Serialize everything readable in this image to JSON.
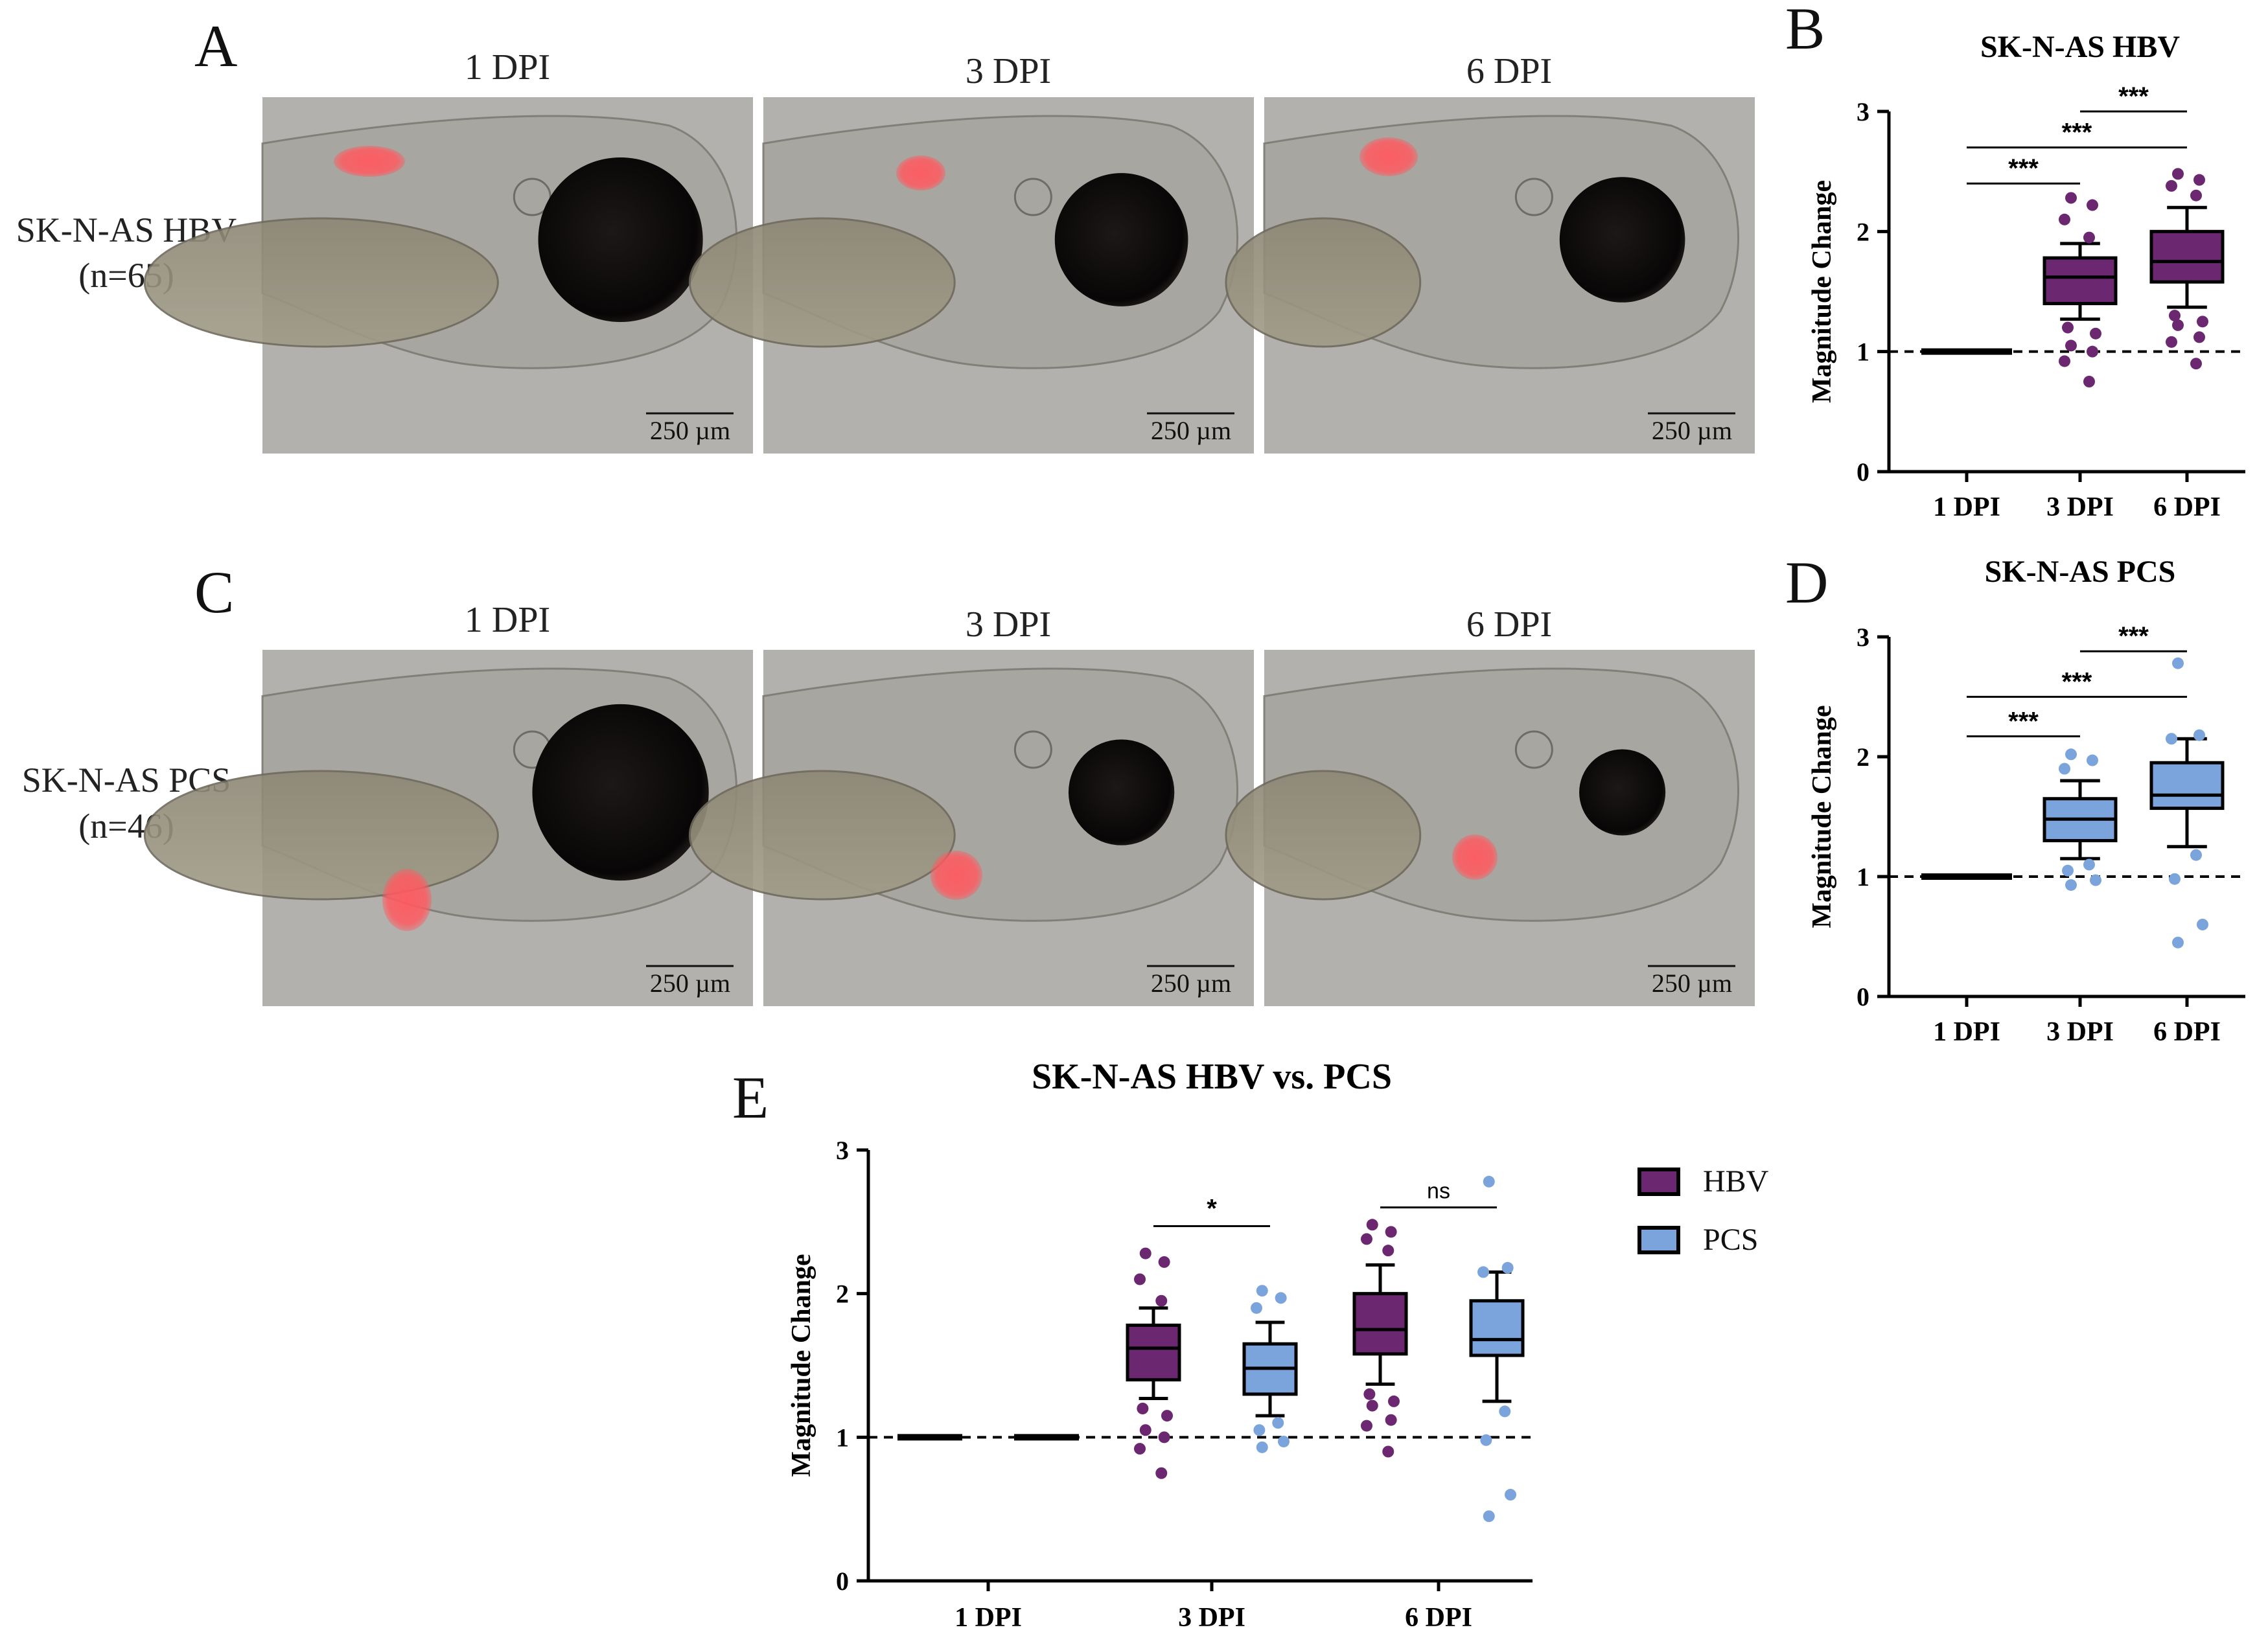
{
  "figure": {
    "panel_letters": {
      "A": "A",
      "B": "B",
      "C": "C",
      "D": "D",
      "E": "E"
    },
    "microscopy": {
      "col_labels": [
        "1 DPI",
        "3 DPI",
        "6 DPI"
      ],
      "row_labels": [
        {
          "line1": "SK-N-AS HBV",
          "line2": "(n=65)"
        },
        {
          "line1": "SK-N-AS PCS",
          "line2": "(n=46)"
        }
      ],
      "scale_bar_label": "250 µm",
      "colors": {
        "background": "#b3b1ad",
        "tumor": "#ff5a60",
        "eye": "#0d0b0b"
      }
    }
  },
  "chart_data": [
    {
      "panel": "B",
      "type": "box",
      "title": "SK-N-AS HBV",
      "ylabel": "Magnitude Change",
      "categories": [
        "1 DPI",
        "3 DPI",
        "6 DPI"
      ],
      "ylim": [
        0,
        3
      ],
      "yticks": [
        "0",
        "1",
        "2",
        "3"
      ],
      "reference_line": 1,
      "color": "#6b2770",
      "boxes": [
        {
          "min": 1,
          "q1": 1,
          "median": 1,
          "q3": 1,
          "max": 1
        },
        {
          "min": 1.27,
          "q1": 1.4,
          "median": 1.62,
          "q3": 1.78,
          "max": 1.9
        },
        {
          "min": 1.37,
          "q1": 1.58,
          "median": 1.75,
          "q3": 2.0,
          "max": 2.2
        }
      ],
      "outliers": [
        [],
        [
          2.28,
          2.22,
          2.1,
          1.95,
          1.2,
          1.15,
          1.05,
          1.0,
          0.92,
          0.75
        ],
        [
          2.48,
          2.43,
          2.38,
          2.3,
          1.3,
          1.25,
          1.22,
          1.12,
          1.08,
          0.9
        ]
      ],
      "significance": [
        {
          "from": 0,
          "to": 1,
          "y": 2.4,
          "label": "***"
        },
        {
          "from": 0,
          "to": 2,
          "y": 2.7,
          "label": "***"
        },
        {
          "from": 1,
          "to": 2,
          "y": 3.0,
          "label": "***"
        }
      ]
    },
    {
      "panel": "D",
      "type": "box",
      "title": "SK-N-AS PCS",
      "ylabel": "Magnitude Change",
      "categories": [
        "1 DPI",
        "3 DPI",
        "6 DPI"
      ],
      "ylim": [
        0,
        3
      ],
      "yticks": [
        "0",
        "1",
        "2",
        "3"
      ],
      "reference_line": 1,
      "color": "#7ba4dc",
      "boxes": [
        {
          "min": 1,
          "q1": 1,
          "median": 1,
          "q3": 1,
          "max": 1
        },
        {
          "min": 1.15,
          "q1": 1.3,
          "median": 1.48,
          "q3": 1.65,
          "max": 1.8
        },
        {
          "min": 1.25,
          "q1": 1.57,
          "median": 1.68,
          "q3": 1.95,
          "max": 2.15
        }
      ],
      "outliers": [
        [],
        [
          2.02,
          1.97,
          1.9,
          1.1,
          1.05,
          0.97,
          0.93
        ],
        [
          2.78,
          2.18,
          2.15,
          1.18,
          0.98,
          0.6,
          0.45
        ]
      ],
      "significance": [
        {
          "from": 0,
          "to": 1,
          "y": 2.17,
          "label": "***"
        },
        {
          "from": 0,
          "to": 2,
          "y": 2.5,
          "label": "***"
        },
        {
          "from": 1,
          "to": 2,
          "y": 2.88,
          "label": "***"
        }
      ]
    },
    {
      "panel": "E",
      "type": "box",
      "title": "SK-N-AS HBV vs. PCS",
      "ylabel": "Magnitude  Change",
      "categories": [
        "1 DPI",
        "3 DPI",
        "6 DPI"
      ],
      "ylim": [
        0,
        3
      ],
      "yticks": [
        "0",
        "1",
        "2",
        "3"
      ],
      "reference_line": 1,
      "legend_position": "right",
      "series": [
        {
          "name": "HBV",
          "color": "#6b2770",
          "boxes": [
            {
              "min": 1,
              "q1": 1,
              "median": 1,
              "q3": 1,
              "max": 1
            },
            {
              "min": 1.27,
              "q1": 1.4,
              "median": 1.62,
              "q3": 1.78,
              "max": 1.9
            },
            {
              "min": 1.37,
              "q1": 1.58,
              "median": 1.75,
              "q3": 2.0,
              "max": 2.2
            }
          ],
          "outliers": [
            [],
            [
              2.28,
              2.22,
              2.1,
              1.95,
              1.2,
              1.15,
              1.05,
              1.0,
              0.92,
              0.75
            ],
            [
              2.48,
              2.43,
              2.38,
              2.3,
              1.3,
              1.25,
              1.22,
              1.12,
              1.08,
              0.9
            ]
          ]
        },
        {
          "name": "PCS",
          "color": "#7ba4dc",
          "boxes": [
            {
              "min": 1,
              "q1": 1,
              "median": 1,
              "q3": 1,
              "max": 1
            },
            {
              "min": 1.15,
              "q1": 1.3,
              "median": 1.48,
              "q3": 1.65,
              "max": 1.8
            },
            {
              "min": 1.25,
              "q1": 1.57,
              "median": 1.68,
              "q3": 1.95,
              "max": 2.15
            }
          ],
          "outliers": [
            [],
            [
              2.02,
              1.97,
              1.9,
              1.1,
              1.05,
              0.97,
              0.93
            ],
            [
              2.78,
              2.18,
              2.15,
              1.18,
              0.98,
              0.6,
              0.45
            ]
          ]
        }
      ],
      "significance": [
        {
          "category": 1,
          "y": 2.47,
          "label": "*"
        },
        {
          "category": 2,
          "y": 2.6,
          "label": "ns"
        }
      ]
    }
  ]
}
